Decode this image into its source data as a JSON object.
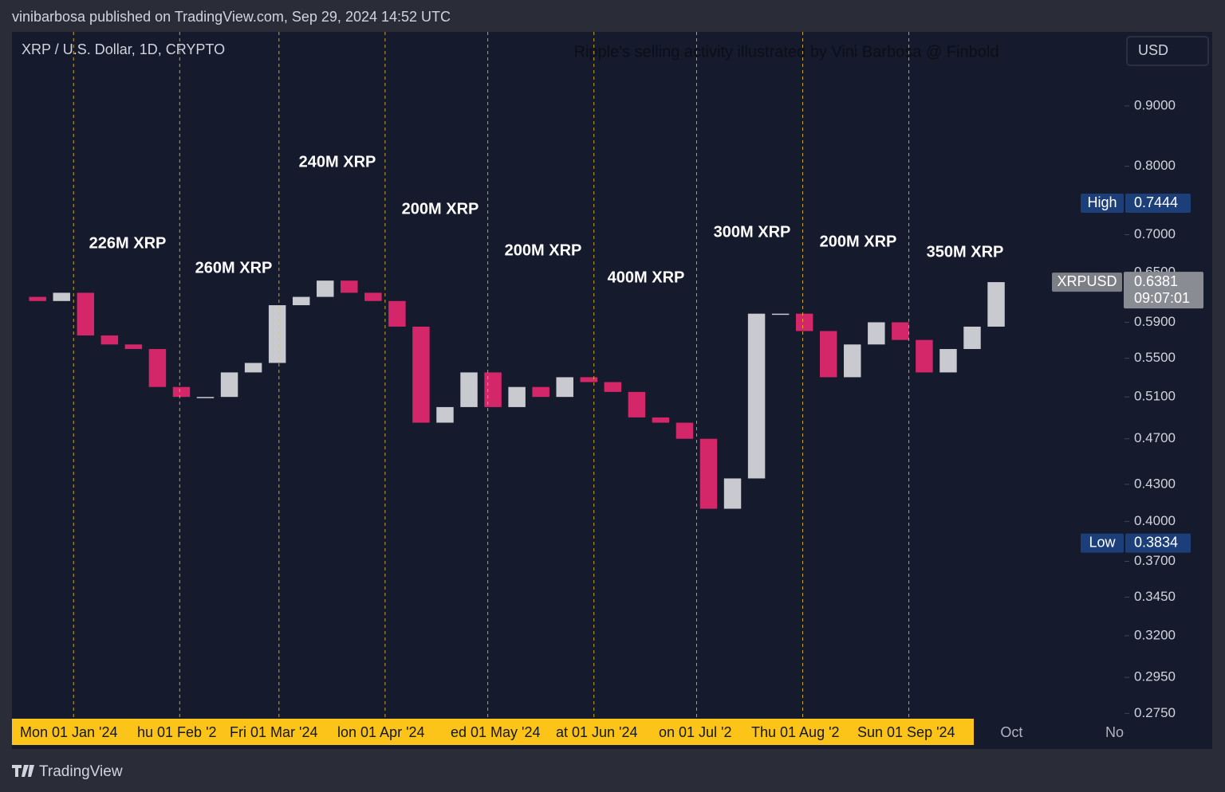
{
  "header": {
    "byline": "vinibarbosa published on TradingView.com, Sep 29, 2024 14:52 UTC",
    "brand": "TradingView"
  },
  "chart_data": {
    "type": "candlestick",
    "symbol": "XRP / U.S. Dollar, 1D, CRYPTO",
    "title": "Ripple's selling activity illustrated by Vini Barbosa @ Finbold",
    "currency": "USD",
    "x": [
      "2023-12-18",
      "2023-12-25",
      "2024-01-01",
      "2024-01-08",
      "2024-01-15",
      "2024-01-22",
      "2024-01-29",
      "2024-02-05",
      "2024-02-12",
      "2024-02-19",
      "2024-02-26",
      "2024-03-04",
      "2024-03-11",
      "2024-03-18",
      "2024-03-25",
      "2024-04-01",
      "2024-04-08",
      "2024-04-15",
      "2024-04-22",
      "2024-04-29",
      "2024-05-06",
      "2024-05-13",
      "2024-05-20",
      "2024-05-27",
      "2024-06-03",
      "2024-06-10",
      "2024-06-17",
      "2024-06-24",
      "2024-07-01",
      "2024-07-08",
      "2024-07-15",
      "2024-07-22",
      "2024-07-29",
      "2024-08-05",
      "2024-08-12",
      "2024-08-19",
      "2024-08-26",
      "2024-09-02",
      "2024-09-09",
      "2024-09-16",
      "2024-09-23"
    ],
    "open": [
      0.62,
      0.615,
      0.625,
      0.575,
      0.565,
      0.56,
      0.52,
      0.51,
      0.51,
      0.535,
      0.545,
      0.61,
      0.62,
      0.64,
      0.625,
      0.615,
      0.585,
      0.485,
      0.5,
      0.535,
      0.5,
      0.52,
      0.51,
      0.53,
      0.525,
      0.515,
      0.49,
      0.485,
      0.47,
      0.41,
      0.435,
      0.6,
      0.6,
      0.58,
      0.53,
      0.565,
      0.59,
      0.57,
      0.535,
      0.56,
      0.585
    ],
    "high": {
      "label": "High",
      "value": 0.7444
    },
    "low": {
      "label": "Low",
      "value": 0.3834
    },
    "close": [
      0.615,
      0.625,
      0.575,
      0.565,
      0.56,
      0.52,
      0.51,
      0.51,
      0.535,
      0.545,
      0.61,
      0.62,
      0.64,
      0.625,
      0.615,
      0.585,
      0.485,
      0.5,
      0.535,
      0.5,
      0.52,
      0.51,
      0.53,
      0.525,
      0.515,
      0.49,
      0.485,
      0.47,
      0.41,
      0.435,
      0.6,
      0.6,
      0.58,
      0.53,
      0.565,
      0.59,
      0.57,
      0.535,
      0.56,
      0.585,
      0.6381
    ],
    "up_color": "#c9cad0",
    "down_color": "#d4276a",
    "log_scale": true,
    "ylim": [
      0.273,
      1.04
    ],
    "yticks": [
      {
        "value": 0.275,
        "label": "0.2750"
      },
      {
        "value": 0.295,
        "label": "0.2950"
      },
      {
        "value": 0.32,
        "label": "0.3200"
      },
      {
        "value": 0.345,
        "label": "0.3450"
      },
      {
        "value": 0.37,
        "label": "0.3700"
      },
      {
        "value": 0.4,
        "label": "0.4000"
      },
      {
        "value": 0.43,
        "label": "0.4300"
      },
      {
        "value": 0.47,
        "label": "0.4700"
      },
      {
        "value": 0.51,
        "label": "0.5100"
      },
      {
        "value": 0.55,
        "label": "0.5500"
      },
      {
        "value": 0.59,
        "label": "0.5900"
      },
      {
        "value": 0.65,
        "label": "0.6500"
      },
      {
        "value": 0.7,
        "label": "0.7000"
      },
      {
        "value": 0.8,
        "label": "0.8000"
      },
      {
        "value": 0.9,
        "label": "0.9000"
      }
    ],
    "xlim": [
      "2023-12-14",
      "2024-11-03"
    ],
    "xticks": [
      {
        "value": "2024-01-01",
        "label": "Mon 01 Jan '24"
      },
      {
        "value": "2024-02-01",
        "label": "hu 01 Feb '2"
      },
      {
        "value": "2024-03-01",
        "label": "Fri 01 Mar '24"
      },
      {
        "value": "2024-04-01",
        "label": "lon 01 Apr '24"
      },
      {
        "value": "2024-05-01",
        "label": "ed 01 May '24"
      },
      {
        "value": "2024-06-01",
        "label": "at 01 Jun '24"
      },
      {
        "value": "2024-07-01",
        "label": "on 01 Jul '2"
      },
      {
        "value": "2024-08-01",
        "label": "Thu 01 Aug '2"
      },
      {
        "value": "2024-09-01",
        "label": "Sun 01 Sep '24"
      },
      {
        "value": "2024-10-01",
        "label": "Oct"
      },
      {
        "value": "2024-11-01",
        "label": "No"
      }
    ],
    "highlight_color": "#fcc419",
    "annotations": [
      "226M XRP",
      "260M XRP",
      "240M XRP",
      "200M XRP",
      "200M XRP",
      "400M XRP",
      "300M XRP",
      "200M XRP",
      "350M XRP"
    ],
    "last": {
      "label": "XRPUSD",
      "value": 0.6381,
      "countdown": "09:07:01"
    }
  }
}
